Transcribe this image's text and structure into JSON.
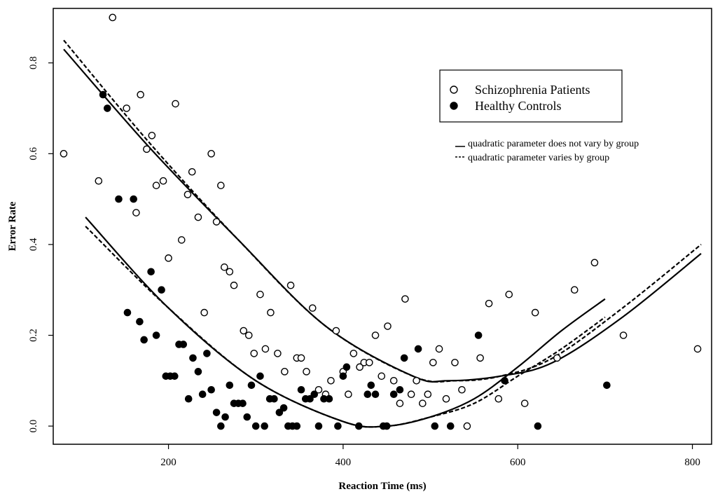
{
  "chart_data": {
    "type": "scatter",
    "xlabel": "Reaction Time (ms)",
    "ylabel": "Error Rate",
    "xlim": [
      68,
      822
    ],
    "ylim": [
      -0.04,
      0.92
    ],
    "x_ticks": [
      200,
      400,
      600,
      800
    ],
    "x_tick_labels": [
      "200",
      "400",
      "600",
      "800"
    ],
    "y_ticks": [
      0.0,
      0.2,
      0.4,
      0.6,
      0.8
    ],
    "y_tick_labels": [
      "0.0",
      "0.2",
      "0.4",
      "0.6",
      "0.8"
    ],
    "grid": false,
    "legend": {
      "placement": "top-right",
      "series_entries": [
        {
          "label": "Schizophrenia Patients",
          "marker": "open-circle"
        },
        {
          "label": "Healthy Controls",
          "marker": "filled-circle"
        }
      ],
      "line_entries": [
        {
          "label": "quadratic parameter does not vary by group",
          "style": "solid"
        },
        {
          "label": "quadratic parameter varies by group",
          "style": "dashed"
        }
      ]
    },
    "series": [
      {
        "name": "Schizophrenia Patients",
        "marker": "open-circle",
        "points": [
          [
            80,
            0.6
          ],
          [
            136,
            0.9
          ],
          [
            120,
            0.54
          ],
          [
            152,
            0.7
          ],
          [
            163,
            0.47
          ],
          [
            168,
            0.73
          ],
          [
            175,
            0.61
          ],
          [
            181,
            0.64
          ],
          [
            186,
            0.53
          ],
          [
            194,
            0.54
          ],
          [
            200,
            0.37
          ],
          [
            208,
            0.71
          ],
          [
            215,
            0.41
          ],
          [
            222,
            0.51
          ],
          [
            227,
            0.56
          ],
          [
            234,
            0.46
          ],
          [
            241,
            0.25
          ],
          [
            249,
            0.6
          ],
          [
            255,
            0.45
          ],
          [
            260,
            0.53
          ],
          [
            264,
            0.35
          ],
          [
            270,
            0.34
          ],
          [
            275,
            0.31
          ],
          [
            286,
            0.21
          ],
          [
            292,
            0.2
          ],
          [
            298,
            0.16
          ],
          [
            305,
            0.29
          ],
          [
            311,
            0.17
          ],
          [
            317,
            0.25
          ],
          [
            325,
            0.16
          ],
          [
            333,
            0.12
          ],
          [
            340,
            0.31
          ],
          [
            347,
            0.15
          ],
          [
            352,
            0.15
          ],
          [
            358,
            0.12
          ],
          [
            365,
            0.26
          ],
          [
            372,
            0.08
          ],
          [
            380,
            0.07
          ],
          [
            386,
            0.1
          ],
          [
            392,
            0.21
          ],
          [
            400,
            0.12
          ],
          [
            406,
            0.07
          ],
          [
            412,
            0.16
          ],
          [
            419,
            0.13
          ],
          [
            424,
            0.14
          ],
          [
            430,
            0.14
          ],
          [
            437,
            0.2
          ],
          [
            444,
            0.11
          ],
          [
            451,
            0.22
          ],
          [
            458,
            0.1
          ],
          [
            465,
            0.05
          ],
          [
            471,
            0.28
          ],
          [
            478,
            0.07
          ],
          [
            484,
            0.1
          ],
          [
            491,
            0.05
          ],
          [
            497,
            0.07
          ],
          [
            503,
            0.14
          ],
          [
            510,
            0.17
          ],
          [
            518,
            0.06
          ],
          [
            528,
            0.14
          ],
          [
            536,
            0.08
          ],
          [
            542,
            0.0
          ],
          [
            557,
            0.15
          ],
          [
            567,
            0.27
          ],
          [
            578,
            0.06
          ],
          [
            590,
            0.29
          ],
          [
            608,
            0.05
          ],
          [
            620,
            0.25
          ],
          [
            645,
            0.15
          ],
          [
            665,
            0.3
          ],
          [
            688,
            0.36
          ],
          [
            721,
            0.2
          ],
          [
            806,
            0.17
          ]
        ]
      },
      {
        "name": "Healthy Controls",
        "marker": "filled-circle",
        "points": [
          [
            125,
            0.73
          ],
          [
            130,
            0.7
          ],
          [
            143,
            0.5
          ],
          [
            153,
            0.25
          ],
          [
            160,
            0.5
          ],
          [
            167,
            0.23
          ],
          [
            172,
            0.19
          ],
          [
            180,
            0.34
          ],
          [
            186,
            0.2
          ],
          [
            192,
            0.3
          ],
          [
            197,
            0.11
          ],
          [
            202,
            0.11
          ],
          [
            207,
            0.11
          ],
          [
            212,
            0.18
          ],
          [
            217,
            0.18
          ],
          [
            223,
            0.06
          ],
          [
            228,
            0.15
          ],
          [
            234,
            0.12
          ],
          [
            239,
            0.07
          ],
          [
            244,
            0.16
          ],
          [
            249,
            0.08
          ],
          [
            255,
            0.03
          ],
          [
            260,
            0.0
          ],
          [
            265,
            0.02
          ],
          [
            270,
            0.09
          ],
          [
            275,
            0.05
          ],
          [
            280,
            0.05
          ],
          [
            285,
            0.05
          ],
          [
            290,
            0.02
          ],
          [
            295,
            0.09
          ],
          [
            300,
            0.0
          ],
          [
            305,
            0.11
          ],
          [
            310,
            0.0
          ],
          [
            316,
            0.06
          ],
          [
            321,
            0.06
          ],
          [
            327,
            0.03
          ],
          [
            332,
            0.04
          ],
          [
            337,
            0.0
          ],
          [
            342,
            0.0
          ],
          [
            347,
            0.0
          ],
          [
            352,
            0.08
          ],
          [
            357,
            0.06
          ],
          [
            362,
            0.06
          ],
          [
            367,
            0.07
          ],
          [
            372,
            0.0
          ],
          [
            378,
            0.06
          ],
          [
            384,
            0.06
          ],
          [
            394,
            0.0
          ],
          [
            400,
            0.11
          ],
          [
            404,
            0.13
          ],
          [
            418,
            0.0
          ],
          [
            428,
            0.07
          ],
          [
            432,
            0.09
          ],
          [
            437,
            0.07
          ],
          [
            446,
            0.0
          ],
          [
            450,
            0.0
          ],
          [
            458,
            0.07
          ],
          [
            465,
            0.08
          ],
          [
            470,
            0.15
          ],
          [
            486,
            0.17
          ],
          [
            505,
            0.0
          ],
          [
            523,
            0.0
          ],
          [
            555,
            0.2
          ],
          [
            585,
            0.1
          ],
          [
            623,
            0.0
          ],
          [
            702,
            0.09
          ]
        ]
      }
    ],
    "fitted_curves": [
      {
        "group": "Schizophrenia Patients",
        "style": "solid",
        "x": [
          80,
          180,
          280,
          380,
          480,
          520,
          580,
          640,
          720,
          810
        ],
        "y": [
          0.83,
          0.61,
          0.41,
          0.22,
          0.11,
          0.1,
          0.11,
          0.14,
          0.24,
          0.38
        ]
      },
      {
        "group": "Schizophrenia Patients",
        "style": "dashed",
        "x": [
          80,
          180,
          280,
          380,
          480,
          530,
          580,
          640,
          720,
          810
        ],
        "y": [
          0.85,
          0.62,
          0.41,
          0.22,
          0.11,
          0.1,
          0.11,
          0.15,
          0.26,
          0.4
        ]
      },
      {
        "group": "Healthy Controls",
        "style": "solid",
        "x": [
          105,
          200,
          300,
          400,
          450,
          500,
          550,
          600,
          650,
          700
        ],
        "y": [
          0.46,
          0.26,
          0.1,
          0.01,
          0.0,
          0.02,
          0.06,
          0.13,
          0.21,
          0.28
        ]
      },
      {
        "group": "Healthy Controls",
        "style": "dashed",
        "x": [
          105,
          200,
          300,
          400,
          450,
          500,
          550,
          600,
          650,
          700
        ],
        "y": [
          0.44,
          0.26,
          0.1,
          0.01,
          0.0,
          0.02,
          0.05,
          0.11,
          0.17,
          0.24
        ]
      }
    ]
  }
}
